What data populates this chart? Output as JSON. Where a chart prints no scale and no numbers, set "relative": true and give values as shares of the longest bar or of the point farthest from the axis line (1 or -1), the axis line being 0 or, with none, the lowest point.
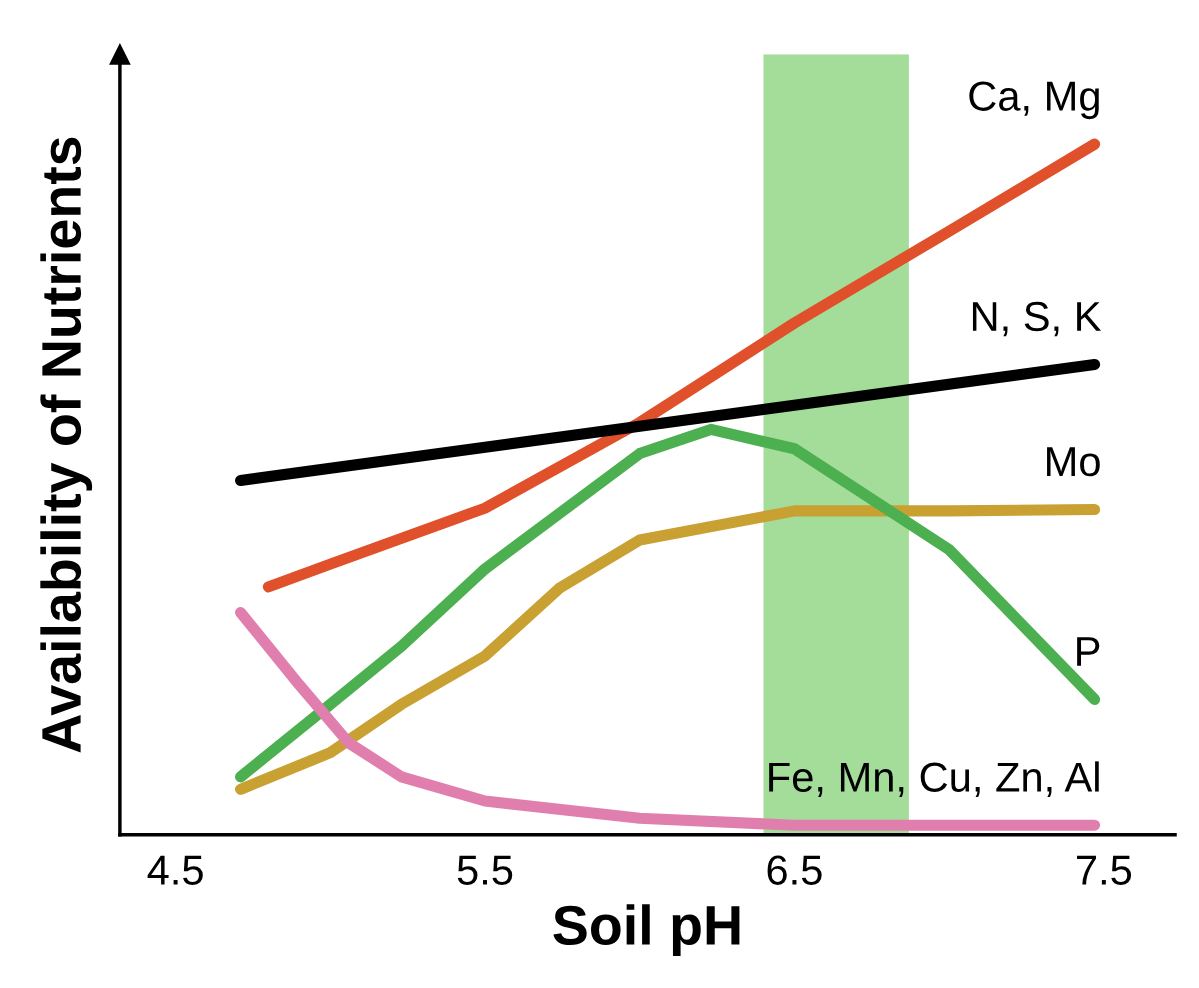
{
  "chart_data": {
    "type": "line",
    "relative": true,
    "xlabel": "Soil pH",
    "ylabel": "Availability of Nutrients",
    "xlim": [
      4.32,
      7.73
    ],
    "xticks": [
      4.5,
      5.5,
      6.5,
      7.5
    ],
    "tick_labels": "x",
    "grid": false,
    "legend": false,
    "marker": "none",
    "line_style": "solid",
    "series": [
      {
        "name": "Ca, Mg",
        "color": "#e0502a",
        "x": [
          4.8,
          5.0,
          5.5,
          6.0,
          6.5,
          7.0,
          7.47
        ],
        "values": [
          0.359,
          0.392,
          0.473,
          0.597,
          0.741,
          0.874,
          1.0
        ]
      },
      {
        "name": "N, S, K",
        "color": "#000000",
        "x": [
          4.71,
          7.47
        ],
        "values": [
          0.513,
          0.681
        ]
      },
      {
        "name": "Mo",
        "color": "#c9a032",
        "x": [
          4.71,
          5.0,
          5.23,
          5.5,
          5.74,
          6.0,
          6.5,
          7.0,
          7.47
        ],
        "values": [
          0.066,
          0.119,
          0.189,
          0.259,
          0.357,
          0.427,
          0.469,
          0.469,
          0.471
        ]
      },
      {
        "name": "P",
        "color": "#4caf50",
        "x": [
          4.71,
          5.0,
          5.23,
          5.5,
          6.0,
          6.23,
          6.5,
          7.0,
          7.47
        ],
        "values": [
          0.084,
          0.189,
          0.273,
          0.385,
          0.552,
          0.587,
          0.559,
          0.413,
          0.196
        ]
      },
      {
        "name": "Fe, Mn, Cu, Zn, Al",
        "color": "#e07fae",
        "x": [
          4.71,
          4.9,
          5.06,
          5.23,
          5.5,
          6.0,
          6.5,
          7.47
        ],
        "values": [
          0.322,
          0.217,
          0.133,
          0.084,
          0.049,
          0.024,
          0.014,
          0.014
        ]
      }
    ],
    "bands": [
      {
        "axis": "x",
        "from": 6.4,
        "to": 6.87,
        "color": "#7ccf6e"
      }
    ]
  }
}
